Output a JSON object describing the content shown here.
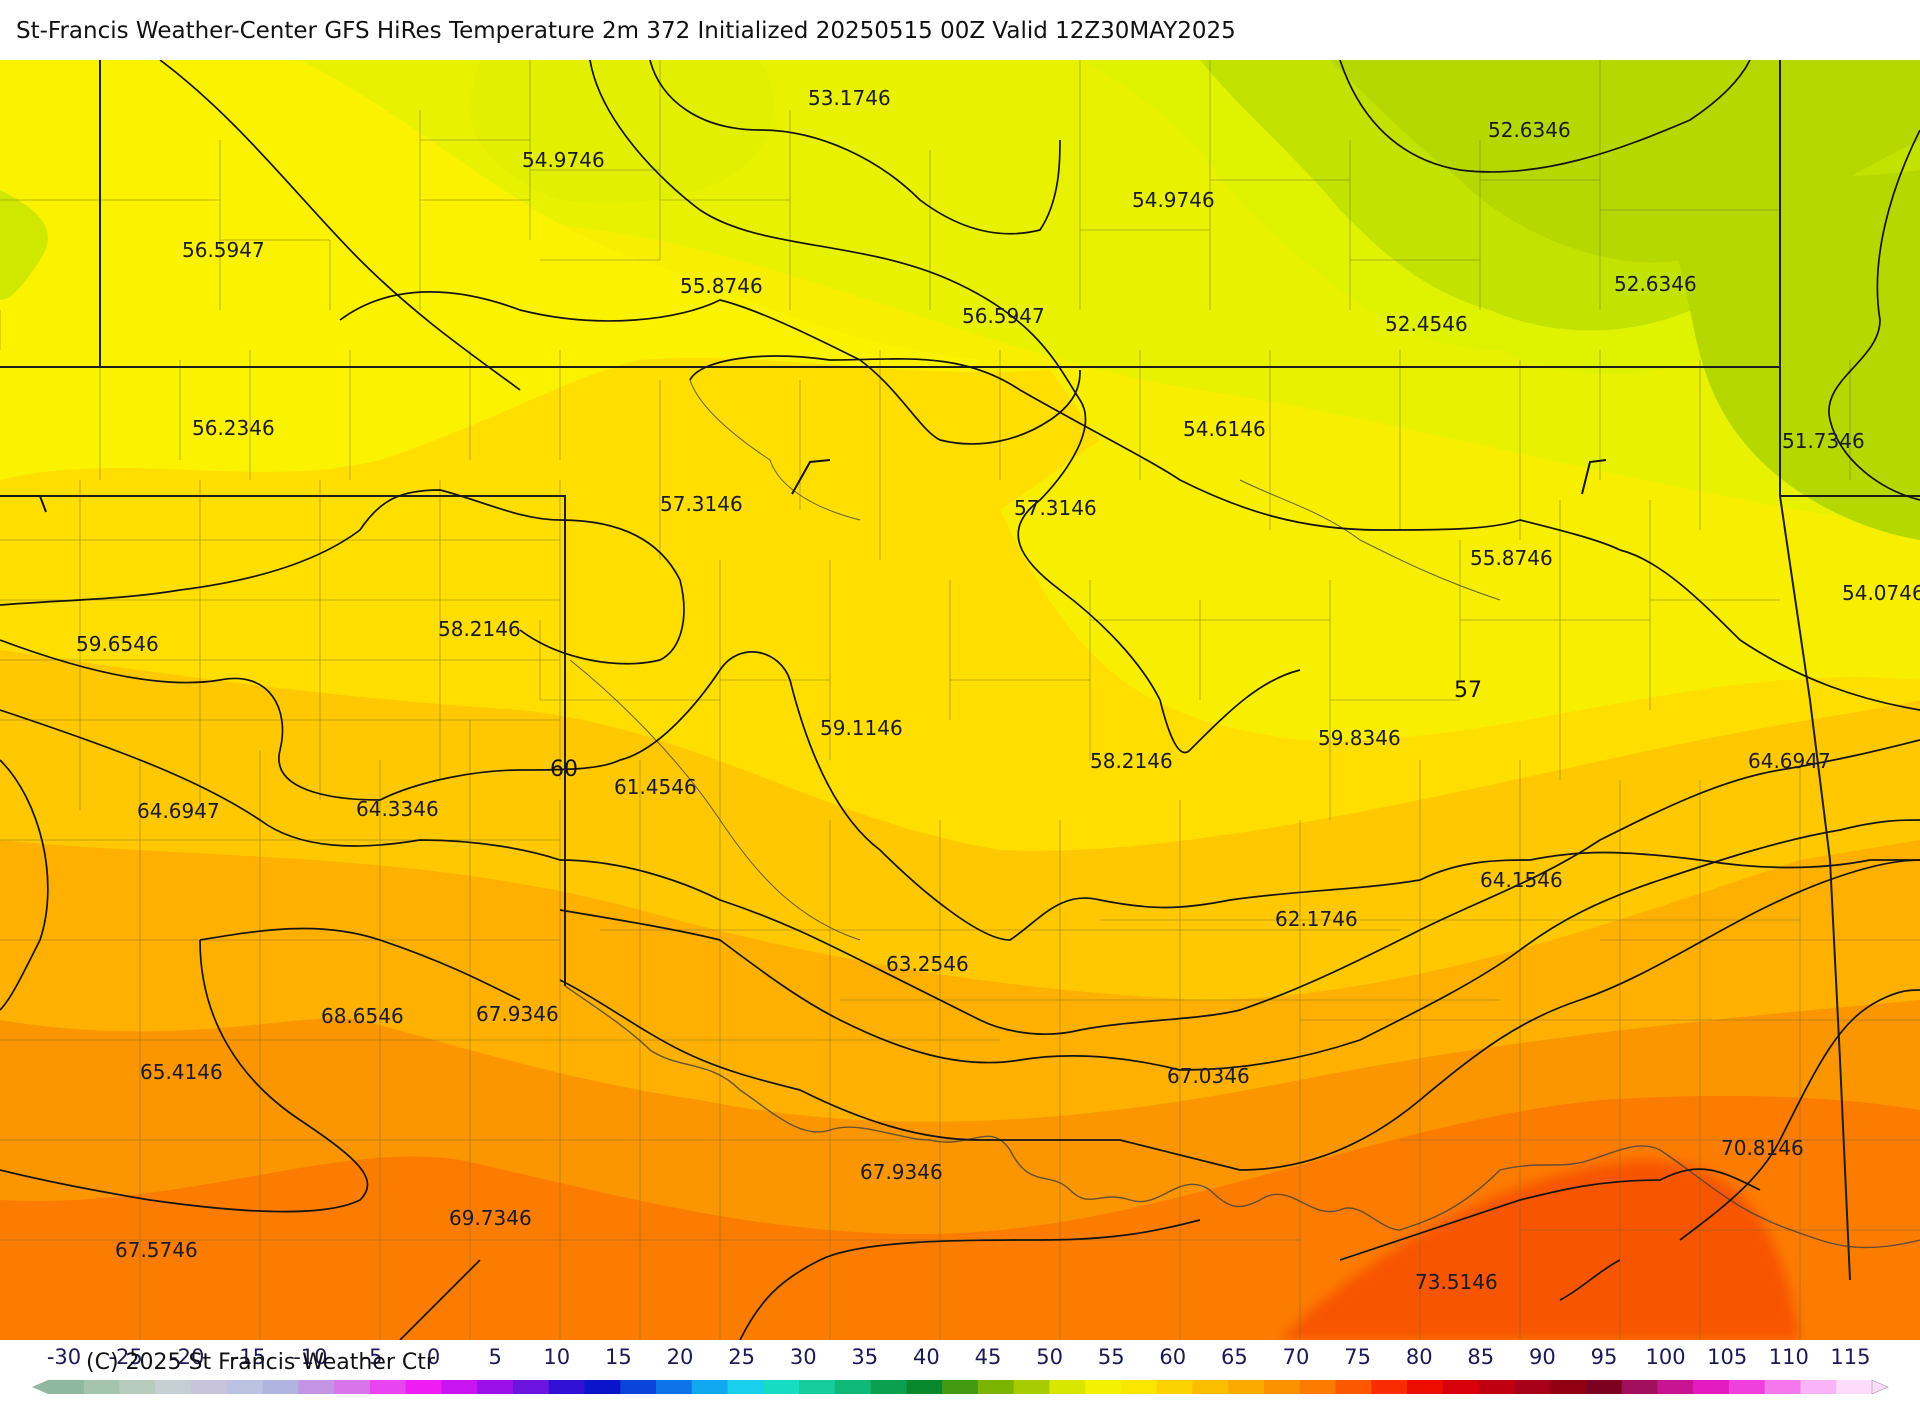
{
  "title": "St-Francis Weather-Center GFS HiRes Temperature 2m  372 Initialized 20250515 00Z Valid 12Z30MAY2025",
  "copyright": "(C) 2025 St Francis Weather Ctr",
  "temperature_labels": [
    {
      "text": "53.1746"
    },
    {
      "text": "54.9746"
    },
    {
      "text": "54.9746"
    },
    {
      "text": "52.6346"
    },
    {
      "text": "56.5947"
    },
    {
      "text": "55.8746"
    },
    {
      "text": "56.5947"
    },
    {
      "text": "52.4546"
    },
    {
      "text": "52.6346"
    },
    {
      "text": "56.2346"
    },
    {
      "text": "54.6146"
    },
    {
      "text": "51.7346"
    },
    {
      "text": "57.3146"
    },
    {
      "text": "57.3146"
    },
    {
      "text": "55.8746"
    },
    {
      "text": "54.0746"
    },
    {
      "text": "59.6546"
    },
    {
      "text": "58.2146"
    },
    {
      "text": "59.1146"
    },
    {
      "text": "58.2146"
    },
    {
      "text": "59.8346"
    },
    {
      "text": "64.6947"
    },
    {
      "text": "61.4546"
    },
    {
      "text": "64.6947"
    },
    {
      "text": "64.3346"
    },
    {
      "text": "64.1546"
    },
    {
      "text": "62.1746"
    },
    {
      "text": "63.2546"
    },
    {
      "text": "68.6546"
    },
    {
      "text": "67.9346"
    },
    {
      "text": "65.4146"
    },
    {
      "text": "67.0346"
    },
    {
      "text": "67.9346"
    },
    {
      "text": "69.7346"
    },
    {
      "text": "70.8146"
    },
    {
      "text": "67.5746"
    },
    {
      "text": "73.5146"
    }
  ],
  "contour_labels": [
    {
      "text": "60"
    },
    {
      "text": "57"
    }
  ],
  "scale": {
    "ticks": [
      "-30",
      "-25",
      "-20",
      "-15",
      "-10",
      "-5",
      "0",
      "5",
      "10",
      "15",
      "20",
      "25",
      "30",
      "35",
      "40",
      "45",
      "50",
      "55",
      "60",
      "65",
      "70",
      "75",
      "80",
      "85",
      "90",
      "95",
      "100",
      "105",
      "110",
      "115"
    ],
    "colors": [
      "#8fb8a0",
      "#a4c4ae",
      "#b8ccbe",
      "#c6cfd4",
      "#c8c4dc",
      "#bcc2e2",
      "#b0b4e0",
      "#c694e4",
      "#d874ec",
      "#e844f0",
      "#f01cf4",
      "#c814f0",
      "#9c10e8",
      "#6c14e0",
      "#3010d4",
      "#0a14c8",
      "#0a44d8",
      "#0c74e8",
      "#12a8f0",
      "#18d0ec",
      "#16dcc4",
      "#14cc9c",
      "#10b878",
      "#0aa050",
      "#08882c",
      "#449a10",
      "#7cb404",
      "#a8cc02",
      "#d8e600",
      "#f4f200",
      "#fae600",
      "#fcd200",
      "#fcbe00",
      "#fcaa00",
      "#fc9200",
      "#fc7c00",
      "#fc5800",
      "#f82c00",
      "#ec0c00",
      "#d8000a",
      "#c00010",
      "#a80018",
      "#900010",
      "#7c0020",
      "#a0105c",
      "#c81490",
      "#e41cc0",
      "#f040dc",
      "#f478ec",
      "#f8b4f6",
      "#fcdcfa"
    ]
  }
}
